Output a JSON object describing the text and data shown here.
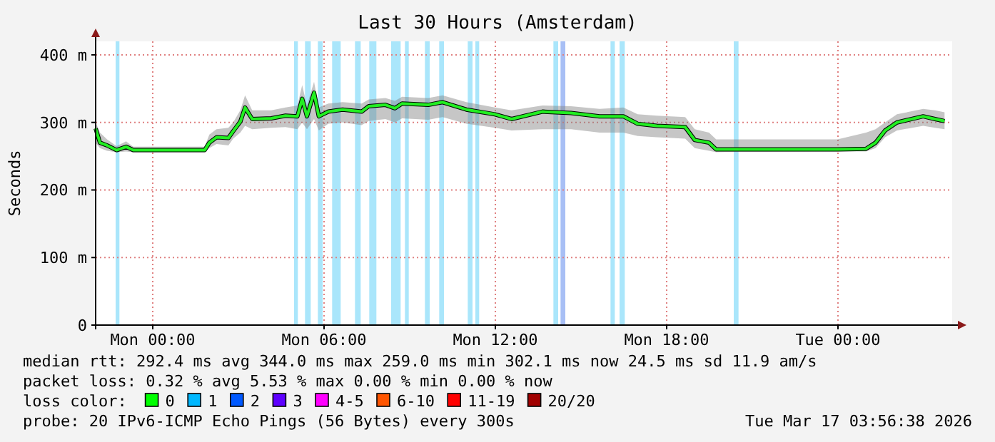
{
  "chart_data": {
    "type": "line",
    "title": "Last 30 Hours (Amsterdam)",
    "ylabel": "Seconds",
    "xlim": [
      "2026-03-15T22:00",
      "2026-03-17T04:00"
    ],
    "xticks": [
      {
        "value": "2026-03-16T00:00",
        "label": "Mon 00:00"
      },
      {
        "value": "2026-03-16T06:00",
        "label": "Mon 06:00"
      },
      {
        "value": "2026-03-16T12:00",
        "label": "Mon 12:00"
      },
      {
        "value": "2026-03-16T18:00",
        "label": "Mon 18:00"
      },
      {
        "value": "2026-03-17T00:00",
        "label": "Tue 00:00"
      }
    ],
    "ylim": [
      0,
      420
    ],
    "yticks": [
      0,
      {
        "value": 100,
        "label": "100 m"
      },
      {
        "value": 200,
        "label": "200 m"
      },
      {
        "value": 300,
        "label": "300 m"
      },
      {
        "value": 400,
        "label": "400 m"
      }
    ],
    "grid": true,
    "marker": "none",
    "line_style": "solid",
    "x": [
      "2026-03-15T22:00",
      "2026-03-15T22:09",
      "2026-03-15T22:24",
      "2026-03-15T22:44",
      "2026-03-15T23:04",
      "2026-03-15T23:19",
      "2026-03-16T01:49",
      "2026-03-16T01:59",
      "2026-03-16T02:14",
      "2026-03-16T02:39",
      "2026-03-16T02:49",
      "2026-03-16T03:04",
      "2026-03-16T03:14",
      "2026-03-16T03:29",
      "2026-03-16T04:09",
      "2026-03-16T04:39",
      "2026-03-16T05:04",
      "2026-03-16T05:14",
      "2026-03-16T05:24",
      "2026-03-16T05:39",
      "2026-03-16T05:49",
      "2026-03-16T06:09",
      "2026-03-16T06:39",
      "2026-03-16T07:19",
      "2026-03-16T07:34",
      "2026-03-16T08:09",
      "2026-03-16T08:29",
      "2026-03-16T08:44",
      "2026-03-16T09:39",
      "2026-03-16T10:09",
      "2026-03-16T10:59",
      "2026-03-16T11:59",
      "2026-03-16T12:34",
      "2026-03-16T13:39",
      "2026-03-16T14:39",
      "2026-03-16T15:39",
      "2026-03-16T16:29",
      "2026-03-16T16:59",
      "2026-03-16T17:39",
      "2026-03-16T18:39",
      "2026-03-16T18:59",
      "2026-03-16T19:29",
      "2026-03-16T19:44",
      "2026-03-16T23:59",
      "2026-03-17T00:59",
      "2026-03-17T01:19",
      "2026-03-17T01:39",
      "2026-03-17T02:04",
      "2026-03-17T02:59",
      "2026-03-17T03:24",
      "2026-03-17T03:44"
    ],
    "series": [
      {
        "color": "#22ee22",
        "values": [
          291,
          270,
          266,
          259,
          264,
          259,
          259,
          270,
          278,
          277,
          287,
          301,
          322,
          305,
          306,
          310,
          309,
          335,
          309,
          344,
          309,
          316,
          319,
          316,
          324,
          326,
          321,
          328,
          326,
          330,
          319,
          312,
          305,
          316,
          314,
          309,
          309,
          298,
          295,
          293,
          274,
          270,
          260,
          260,
          261,
          270,
          288,
          300,
          309,
          305,
          302
        ],
        "lower": [
          270,
          262,
          258,
          256,
          257,
          256,
          256,
          262,
          268,
          266,
          276,
          285,
          295,
          290,
          292,
          293,
          290,
          300,
          290,
          305,
          288,
          298,
          300,
          296,
          302,
          305,
          300,
          306,
          304,
          308,
          298,
          292,
          288,
          290,
          290,
          285,
          285,
          280,
          278,
          276,
          262,
          258,
          256,
          257,
          257,
          262,
          278,
          288,
          295,
          292,
          290
        ],
        "upper": [
          300,
          285,
          275,
          265,
          272,
          264,
          264,
          282,
          290,
          292,
          300,
          318,
          340,
          318,
          318,
          322,
          325,
          355,
          325,
          360,
          322,
          328,
          330,
          328,
          334,
          336,
          332,
          338,
          336,
          340,
          330,
          322,
          318,
          325,
          324,
          320,
          322,
          312,
          310,
          308,
          290,
          285,
          275,
          275,
          285,
          290,
          300,
          312,
          320,
          318,
          315
        ]
      }
    ],
    "bands": [
      {
        "axis": "x",
        "from": "2026-03-15T22:42",
        "to": "2026-03-15T22:50",
        "color": "#aae6fb"
      },
      {
        "axis": "x",
        "from": "2026-03-16T04:57",
        "to": "2026-03-16T05:05",
        "color": "#aae6fb"
      },
      {
        "axis": "x",
        "from": "2026-03-16T05:20",
        "to": "2026-03-16T05:32",
        "color": "#aae6fb"
      },
      {
        "axis": "x",
        "from": "2026-03-16T05:47",
        "to": "2026-03-16T05:57",
        "color": "#aae6fb"
      },
      {
        "axis": "x",
        "from": "2026-03-16T06:17",
        "to": "2026-03-16T06:35",
        "color": "#aae6fb"
      },
      {
        "axis": "x",
        "from": "2026-03-16T07:05",
        "to": "2026-03-16T07:17",
        "color": "#aae6fb"
      },
      {
        "axis": "x",
        "from": "2026-03-16T07:35",
        "to": "2026-03-16T07:50",
        "color": "#aae6fb"
      },
      {
        "axis": "x",
        "from": "2026-03-16T08:21",
        "to": "2026-03-16T08:41",
        "color": "#aae6fb"
      },
      {
        "axis": "x",
        "from": "2026-03-16T08:50",
        "to": "2026-03-16T08:58",
        "color": "#aae6fb"
      },
      {
        "axis": "x",
        "from": "2026-03-16T09:32",
        "to": "2026-03-16T09:42",
        "color": "#aae6fb"
      },
      {
        "axis": "x",
        "from": "2026-03-16T10:02",
        "to": "2026-03-16T10:12",
        "color": "#aae6fb"
      },
      {
        "axis": "x",
        "from": "2026-03-16T11:02",
        "to": "2026-03-16T11:12",
        "color": "#aae6fb"
      },
      {
        "axis": "x",
        "from": "2026-03-16T11:18",
        "to": "2026-03-16T11:26",
        "color": "#aae6fb"
      },
      {
        "axis": "x",
        "from": "2026-03-16T14:02",
        "to": "2026-03-16T14:12",
        "color": "#aae6fb"
      },
      {
        "axis": "x",
        "from": "2026-03-16T14:17",
        "to": "2026-03-16T14:27",
        "color": "#a8bff5"
      },
      {
        "axis": "x",
        "from": "2026-03-16T16:02",
        "to": "2026-03-16T16:11",
        "color": "#aae6fb"
      },
      {
        "axis": "x",
        "from": "2026-03-16T16:21",
        "to": "2026-03-16T16:32",
        "color": "#aae6fb"
      },
      {
        "axis": "x",
        "from": "2026-03-16T20:21",
        "to": "2026-03-16T20:31",
        "color": "#aae6fb"
      }
    ],
    "annotations": [
      "median rtt:  292.4 ms avg  344.0 ms max  259.0 ms min  302.1 ms now  24.5 ms sd  11.9   am/s",
      "packet loss: 0.32 % avg  5.53 % max  0.00 % min  0.00 % now",
      "loss color:  0  1  2  3  4-5  6-10  11-19  20/20",
      "probe:       20 IPv6-ICMP Echo Pings (56 Bytes) every 300s",
      "Tue Mar 17 03:56:38 2026"
    ]
  }
}
